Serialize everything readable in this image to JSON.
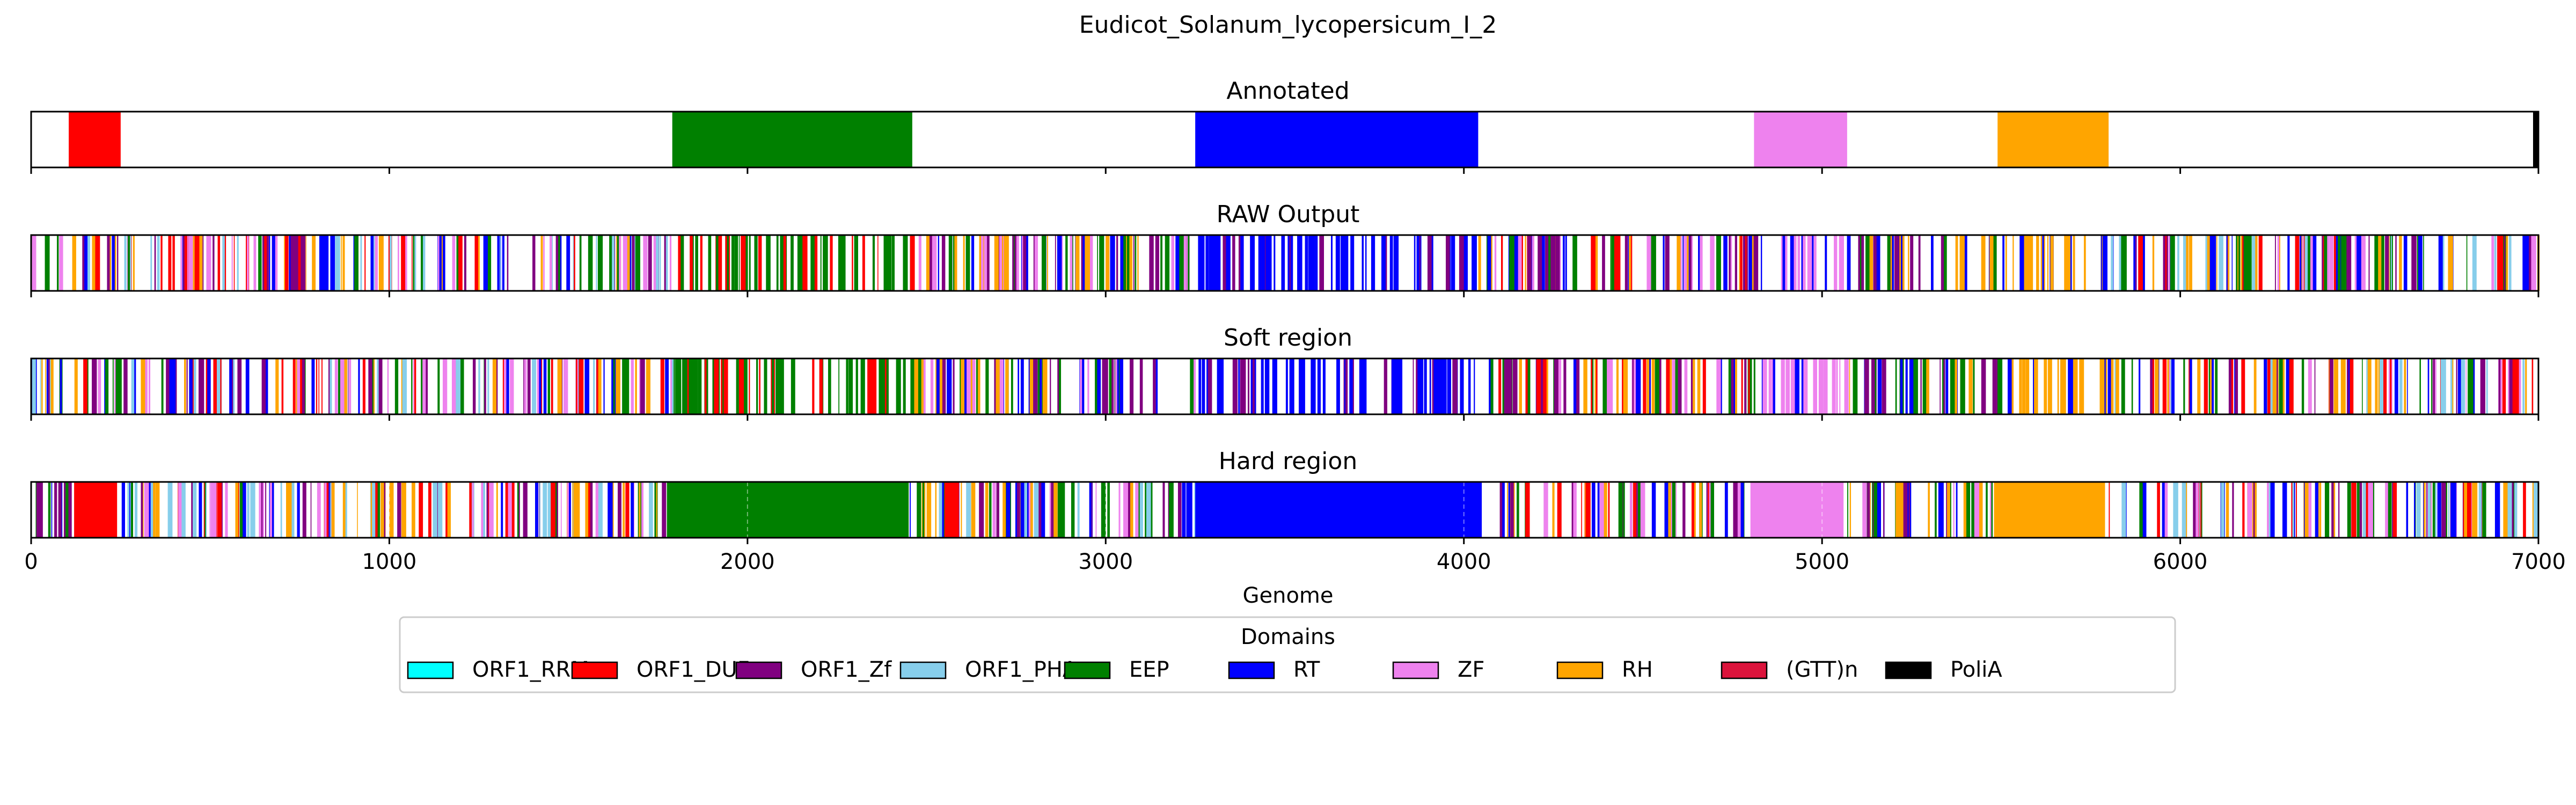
{
  "chart_data": {
    "type": "bar",
    "title": "Eudicot_Solanum_lycopersicum_I_2",
    "xlabel": "Genome",
    "xlim": [
      0,
      7000
    ],
    "xticks": [
      0,
      1000,
      2000,
      3000,
      4000,
      5000,
      6000,
      7000
    ],
    "xtick_labels": [
      "0",
      "1000",
      "2000",
      "3000",
      "4000",
      "5000",
      "6000",
      "7000"
    ],
    "legend": {
      "title": "Domains",
      "placement": "bottom-center",
      "entries": [
        {
          "label": "ORF1_RRM",
          "color": "#00ffff"
        },
        {
          "label": "ORF1_DUF",
          "color": "#ff0000"
        },
        {
          "label": "ORF1_Zf",
          "color": "#800080"
        },
        {
          "label": "ORF1_PHA",
          "color": "#87ceeb"
        },
        {
          "label": "EEP",
          "color": "#008000"
        },
        {
          "label": "RT",
          "color": "#0000ff"
        },
        {
          "label": "ZF",
          "color": "#ee82ee"
        },
        {
          "label": "RH",
          "color": "#ffa500"
        },
        {
          "label": "(GTT)n",
          "color": "#dc143c"
        },
        {
          "label": "PoliA",
          "color": "#000000"
        }
      ]
    },
    "panels": [
      {
        "title": "Annotated",
        "segments": [
          {
            "domain": "ORF1_DUF",
            "start": 105,
            "end": 250
          },
          {
            "domain": "EEP",
            "start": 1790,
            "end": 2460
          },
          {
            "domain": "RT",
            "start": 3250,
            "end": 4040
          },
          {
            "domain": "ZF",
            "start": 4810,
            "end": 5070
          },
          {
            "domain": "RH",
            "start": 5490,
            "end": 5800
          },
          {
            "domain": "PoliA",
            "start": 6985,
            "end": 7000
          }
        ]
      },
      {
        "title": "RAW Output",
        "zones": [
          {
            "start": 0,
            "end": 1790,
            "domains": [
              "RT",
              "EEP",
              "ORF1_DUF",
              "ORF1_Zf",
              "RH",
              "ZF",
              "ORF1_PHA"
            ]
          },
          {
            "start": 1790,
            "end": 2460,
            "domains": [
              "EEP",
              "EEP",
              "EEP",
              "ORF1_DUF"
            ]
          },
          {
            "start": 2460,
            "end": 3250,
            "domains": [
              "RT",
              "EEP",
              "ORF1_Zf",
              "ZF",
              "RH"
            ]
          },
          {
            "start": 3250,
            "end": 4040,
            "domains": [
              "RT",
              "RT",
              "RT",
              "ORF1_Zf"
            ]
          },
          {
            "start": 4040,
            "end": 4810,
            "domains": [
              "RT",
              "EEP",
              "ORF1_Zf",
              "ZF",
              "RH",
              "ORF1_DUF"
            ]
          },
          {
            "start": 4810,
            "end": 5070,
            "domains": [
              "ZF",
              "ZF",
              "RT"
            ]
          },
          {
            "start": 5070,
            "end": 5490,
            "domains": [
              "RT",
              "EEP",
              "RH",
              "ORF1_Zf"
            ]
          },
          {
            "start": 5490,
            "end": 5800,
            "domains": [
              "RH",
              "RH",
              "RH",
              "RT"
            ]
          },
          {
            "start": 5800,
            "end": 7000,
            "domains": [
              "RT",
              "EEP",
              "ORF1_Zf",
              "ZF",
              "RH",
              "ORF1_DUF",
              "ORF1_PHA"
            ]
          }
        ]
      },
      {
        "title": "Soft region",
        "zones": [
          {
            "start": 0,
            "end": 1790,
            "domains": [
              "RT",
              "EEP",
              "ORF1_DUF",
              "ORF1_Zf",
              "RH",
              "ZF",
              "ORF1_PHA"
            ]
          },
          {
            "start": 1790,
            "end": 2460,
            "domains": [
              "EEP",
              "EEP",
              "EEP",
              "ORF1_DUF"
            ]
          },
          {
            "start": 2460,
            "end": 3250,
            "domains": [
              "RT",
              "EEP",
              "ORF1_Zf",
              "ZF",
              "RH"
            ]
          },
          {
            "start": 3250,
            "end": 4040,
            "domains": [
              "RT",
              "RT",
              "RT",
              "ORF1_Zf"
            ]
          },
          {
            "start": 4040,
            "end": 4810,
            "domains": [
              "RT",
              "EEP",
              "ORF1_Zf",
              "ZF",
              "RH",
              "ORF1_DUF"
            ]
          },
          {
            "start": 4810,
            "end": 5070,
            "domains": [
              "ZF",
              "ZF",
              "RT"
            ]
          },
          {
            "start": 5070,
            "end": 5490,
            "domains": [
              "RT",
              "EEP",
              "RH",
              "ORF1_Zf"
            ]
          },
          {
            "start": 5490,
            "end": 5800,
            "domains": [
              "RH",
              "RH",
              "RH",
              "RT"
            ]
          },
          {
            "start": 5800,
            "end": 7000,
            "domains": [
              "RT",
              "EEP",
              "ORF1_Zf",
              "ZF",
              "RH",
              "ORF1_DUF",
              "ORF1_PHA"
            ]
          }
        ]
      },
      {
        "title": "Hard region",
        "segments": [
          {
            "domain": "ORF1_DUF",
            "start": 120,
            "end": 240
          },
          {
            "domain": "EEP",
            "start": 1775,
            "end": 2450
          },
          {
            "domain": "ORF1_DUF",
            "start": 2550,
            "end": 2590
          },
          {
            "domain": "RT",
            "start": 3250,
            "end": 4050
          },
          {
            "domain": "ZF",
            "start": 4800,
            "end": 5060
          },
          {
            "domain": "RH",
            "start": 5480,
            "end": 5790
          }
        ],
        "zones": [
          {
            "start": 0,
            "end": 120,
            "domains": [
              "RT",
              "EEP",
              "ORF1_Zf",
              "RH"
            ]
          },
          {
            "start": 240,
            "end": 1775,
            "domains": [
              "RT",
              "EEP",
              "ORF1_Zf",
              "RH",
              "ORF1_DUF",
              "ZF",
              "ORF1_PHA"
            ]
          },
          {
            "start": 2450,
            "end": 3250,
            "domains": [
              "RT",
              "EEP",
              "ORF1_Zf",
              "ZF",
              "RH",
              "ORF1_PHA"
            ]
          },
          {
            "start": 4050,
            "end": 4800,
            "domains": [
              "RT",
              "EEP",
              "ORF1_Zf",
              "ZF",
              "RH",
              "ORF1_DUF"
            ]
          },
          {
            "start": 5060,
            "end": 5480,
            "domains": [
              "RT",
              "EEP",
              "RH",
              "ORF1_Zf",
              "ZF"
            ]
          },
          {
            "start": 5790,
            "end": 7000,
            "domains": [
              "RT",
              "EEP",
              "ORF1_Zf",
              "ZF",
              "RH",
              "ORF1_DUF",
              "ORF1_PHA"
            ]
          }
        ]
      }
    ],
    "grid": false
  }
}
